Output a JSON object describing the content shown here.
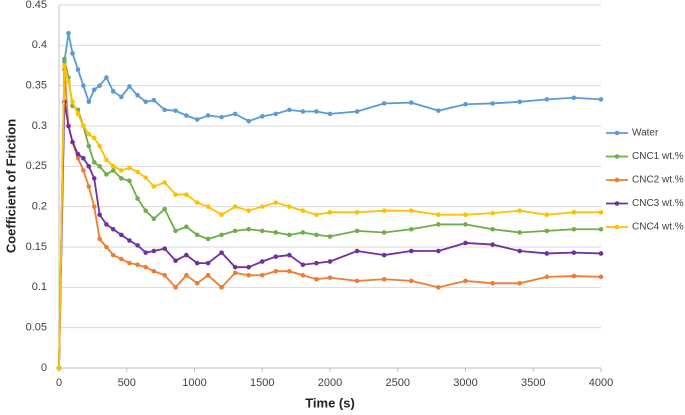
{
  "chart_data": {
    "type": "line",
    "x_label": "Time (s)",
    "y_label": "Coefficient of Friction",
    "x": [
      0,
      40,
      70,
      100,
      140,
      180,
      220,
      260,
      300,
      350,
      400,
      460,
      520,
      580,
      640,
      700,
      780,
      860,
      940,
      1020,
      1100,
      1200,
      1300,
      1400,
      1500,
      1600,
      1700,
      1800,
      1900,
      2000,
      2200,
      2400,
      2600,
      2800,
      3000,
      3200,
      3400,
      3600,
      3800,
      4000
    ],
    "series": [
      {
        "name": "Water",
        "color": "#5b9bd5",
        "values": [
          0,
          0.38,
          0.415,
          0.39,
          0.37,
          0.35,
          0.33,
          0.345,
          0.35,
          0.36,
          0.343,
          0.336,
          0.349,
          0.338,
          0.33,
          0.332,
          0.32,
          0.319,
          0.313,
          0.308,
          0.313,
          0.311,
          0.315,
          0.306,
          0.312,
          0.315,
          0.32,
          0.318,
          0.318,
          0.315,
          0.318,
          0.328,
          0.329,
          0.319,
          0.327,
          0.328,
          0.33,
          0.333,
          0.335,
          0.333
        ]
      },
      {
        "name": "CNC1 wt.%",
        "color": "#70ad47",
        "values": [
          0,
          0.383,
          0.36,
          0.325,
          0.32,
          0.3,
          0.275,
          0.255,
          0.25,
          0.24,
          0.245,
          0.235,
          0.232,
          0.21,
          0.195,
          0.185,
          0.197,
          0.17,
          0.175,
          0.165,
          0.16,
          0.165,
          0.17,
          0.172,
          0.17,
          0.168,
          0.165,
          0.168,
          0.165,
          0.163,
          0.17,
          0.168,
          0.172,
          0.178,
          0.178,
          0.172,
          0.168,
          0.17,
          0.172,
          0.172
        ]
      },
      {
        "name": "CNC2 wt.%",
        "color": "#ed7d31",
        "values": [
          0,
          0.37,
          0.3,
          0.28,
          0.26,
          0.245,
          0.225,
          0.2,
          0.16,
          0.15,
          0.14,
          0.135,
          0.13,
          0.128,
          0.125,
          0.12,
          0.115,
          0.1,
          0.115,
          0.105,
          0.115,
          0.1,
          0.118,
          0.115,
          0.115,
          0.12,
          0.12,
          0.115,
          0.11,
          0.112,
          0.108,
          0.11,
          0.108,
          0.1,
          0.108,
          0.105,
          0.105,
          0.113,
          0.114,
          0.113
        ]
      },
      {
        "name": "CNC3 wt.%",
        "color": "#7030a0",
        "values": [
          0,
          0.33,
          0.3,
          0.28,
          0.265,
          0.26,
          0.25,
          0.235,
          0.19,
          0.178,
          0.172,
          0.165,
          0.158,
          0.152,
          0.143,
          0.145,
          0.148,
          0.133,
          0.14,
          0.13,
          0.13,
          0.143,
          0.125,
          0.125,
          0.132,
          0.138,
          0.14,
          0.128,
          0.13,
          0.132,
          0.145,
          0.14,
          0.145,
          0.145,
          0.155,
          0.153,
          0.145,
          0.142,
          0.143,
          0.142
        ]
      },
      {
        "name": "CNC4 wt.%",
        "color": "#ffc000",
        "values": [
          0,
          0.375,
          0.355,
          0.33,
          0.315,
          0.3,
          0.29,
          0.285,
          0.275,
          0.258,
          0.25,
          0.245,
          0.248,
          0.243,
          0.236,
          0.225,
          0.23,
          0.215,
          0.215,
          0.205,
          0.2,
          0.19,
          0.2,
          0.195,
          0.2,
          0.205,
          0.2,
          0.195,
          0.19,
          0.193,
          0.193,
          0.195,
          0.195,
          0.19,
          0.19,
          0.192,
          0.195,
          0.19,
          0.193,
          0.193
        ]
      }
    ],
    "xlim": [
      0,
      4000
    ],
    "xticks": [
      0,
      500,
      1000,
      1500,
      2000,
      2500,
      3000,
      3500,
      4000
    ],
    "ylim": [
      0,
      0.45
    ],
    "yticks": [
      0,
      0.05,
      0.1,
      0.15,
      0.2,
      0.25,
      0.3,
      0.35,
      0.4,
      0.45
    ],
    "grid": true,
    "legend": "right"
  }
}
